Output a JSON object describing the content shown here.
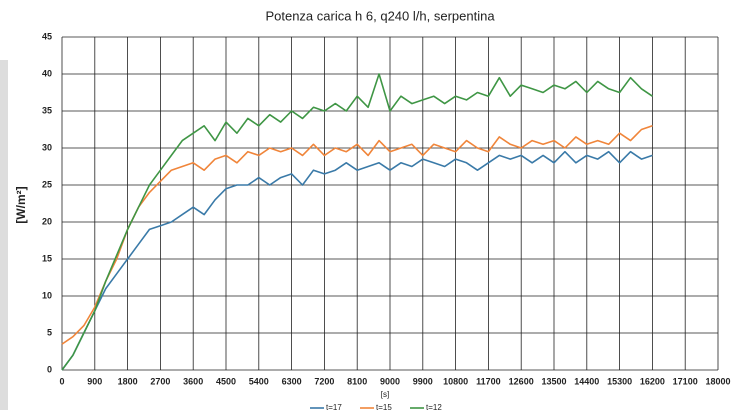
{
  "chart_data": {
    "type": "line",
    "title": "Potenza carica h 6, q240 l/h, serpentina",
    "xlabel": "[s]",
    "ylabel": "[W/m²]",
    "x": [
      0,
      300,
      600,
      900,
      1200,
      1500,
      1800,
      2100,
      2400,
      2700,
      3000,
      3300,
      3600,
      3900,
      4200,
      4500,
      4800,
      5100,
      5400,
      5700,
      6000,
      6300,
      6600,
      6900,
      7200,
      7500,
      7800,
      8100,
      8400,
      8700,
      9000,
      9300,
      9600,
      9900,
      10200,
      10500,
      10800,
      11100,
      11400,
      11700,
      12000,
      12300,
      12600,
      12900,
      13200,
      13500,
      13800,
      14100,
      14400,
      14700,
      15000,
      15300,
      15600,
      15900,
      16200
    ],
    "series": [
      {
        "name": "t=17",
        "color": "#3a7aa8",
        "values": [
          0,
          2,
          5,
          8,
          11,
          13,
          15,
          17,
          19,
          19.5,
          20,
          21,
          22,
          21,
          23,
          24.5,
          25,
          25,
          26,
          25,
          26,
          26.5,
          25,
          27,
          26.5,
          27,
          28,
          27,
          27.5,
          28,
          27,
          28,
          27.5,
          28.5,
          28,
          27.5,
          28.5,
          28,
          27,
          28,
          29,
          28.5,
          29,
          28,
          29,
          28,
          29.5,
          28,
          29,
          28.5,
          29.5,
          28,
          29.5,
          28.5,
          29
        ]
      },
      {
        "name": "t=15",
        "color": "#f0853a",
        "values": [
          3.5,
          4.5,
          6,
          8.5,
          12,
          15,
          19,
          22,
          24,
          25.5,
          27,
          27.5,
          28,
          27,
          28.5,
          29,
          28,
          29.5,
          29,
          30,
          29.5,
          30,
          29,
          30.5,
          29,
          30,
          29.5,
          30.5,
          29,
          31,
          29.5,
          30,
          30.5,
          29,
          30.5,
          30,
          29.5,
          31,
          30,
          29.5,
          31.5,
          30.5,
          30,
          31,
          30.5,
          31,
          30,
          31.5,
          30.5,
          31,
          30.5,
          32,
          31,
          32.5,
          33
        ]
      },
      {
        "name": "t=12",
        "color": "#3f9645",
        "values": [
          0,
          2,
          5,
          8,
          12,
          15.5,
          19,
          22,
          25,
          27,
          29,
          31,
          32,
          33,
          31,
          33.5,
          32,
          34,
          33,
          34.5,
          33.5,
          35,
          34,
          35.5,
          35,
          36,
          35,
          37,
          35.5,
          40,
          35,
          37,
          36,
          36.5,
          37,
          36,
          37,
          36.5,
          37.5,
          37,
          39.5,
          37,
          38.5,
          38,
          37.5,
          38.5,
          38,
          39,
          37.5,
          39,
          38,
          37.5,
          39.5,
          38,
          37
        ]
      }
    ],
    "xlim": [
      0,
      18000
    ],
    "xticks": [
      0,
      900,
      1800,
      2700,
      3600,
      4500,
      5400,
      6300,
      7200,
      8100,
      9000,
      9900,
      10800,
      11700,
      12600,
      13500,
      14400,
      15300,
      16200,
      17100,
      18000
    ],
    "ylim": [
      0,
      45
    ],
    "yticks": [
      0,
      5,
      10,
      15,
      20,
      25,
      30,
      35,
      40,
      45
    ],
    "grid": true,
    "legend": "bottom"
  }
}
